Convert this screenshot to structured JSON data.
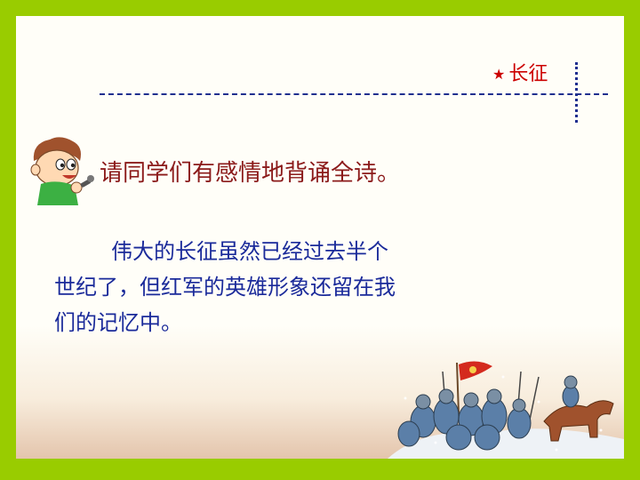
{
  "slide": {
    "title": "长征",
    "title_star": "★",
    "prompt": "请同学们有感情地背诵全诗。",
    "paragraph_lines": [
      "伟大的长征虽然已经过去半个",
      "世纪了，但红军的英雄形象还留在我",
      "们的记忆中。"
    ]
  },
  "colors": {
    "border_green": "#99cc00",
    "title_red": "#cc0000",
    "prompt_red": "#8b1a1a",
    "body_blue": "#1a2a9a",
    "dash_blue": "#1f2f8f"
  },
  "icons": {
    "title_marker": "star-icon",
    "kid": "cartoon-kid-microphone-icon",
    "illustration": "red-army-march-illustration"
  }
}
